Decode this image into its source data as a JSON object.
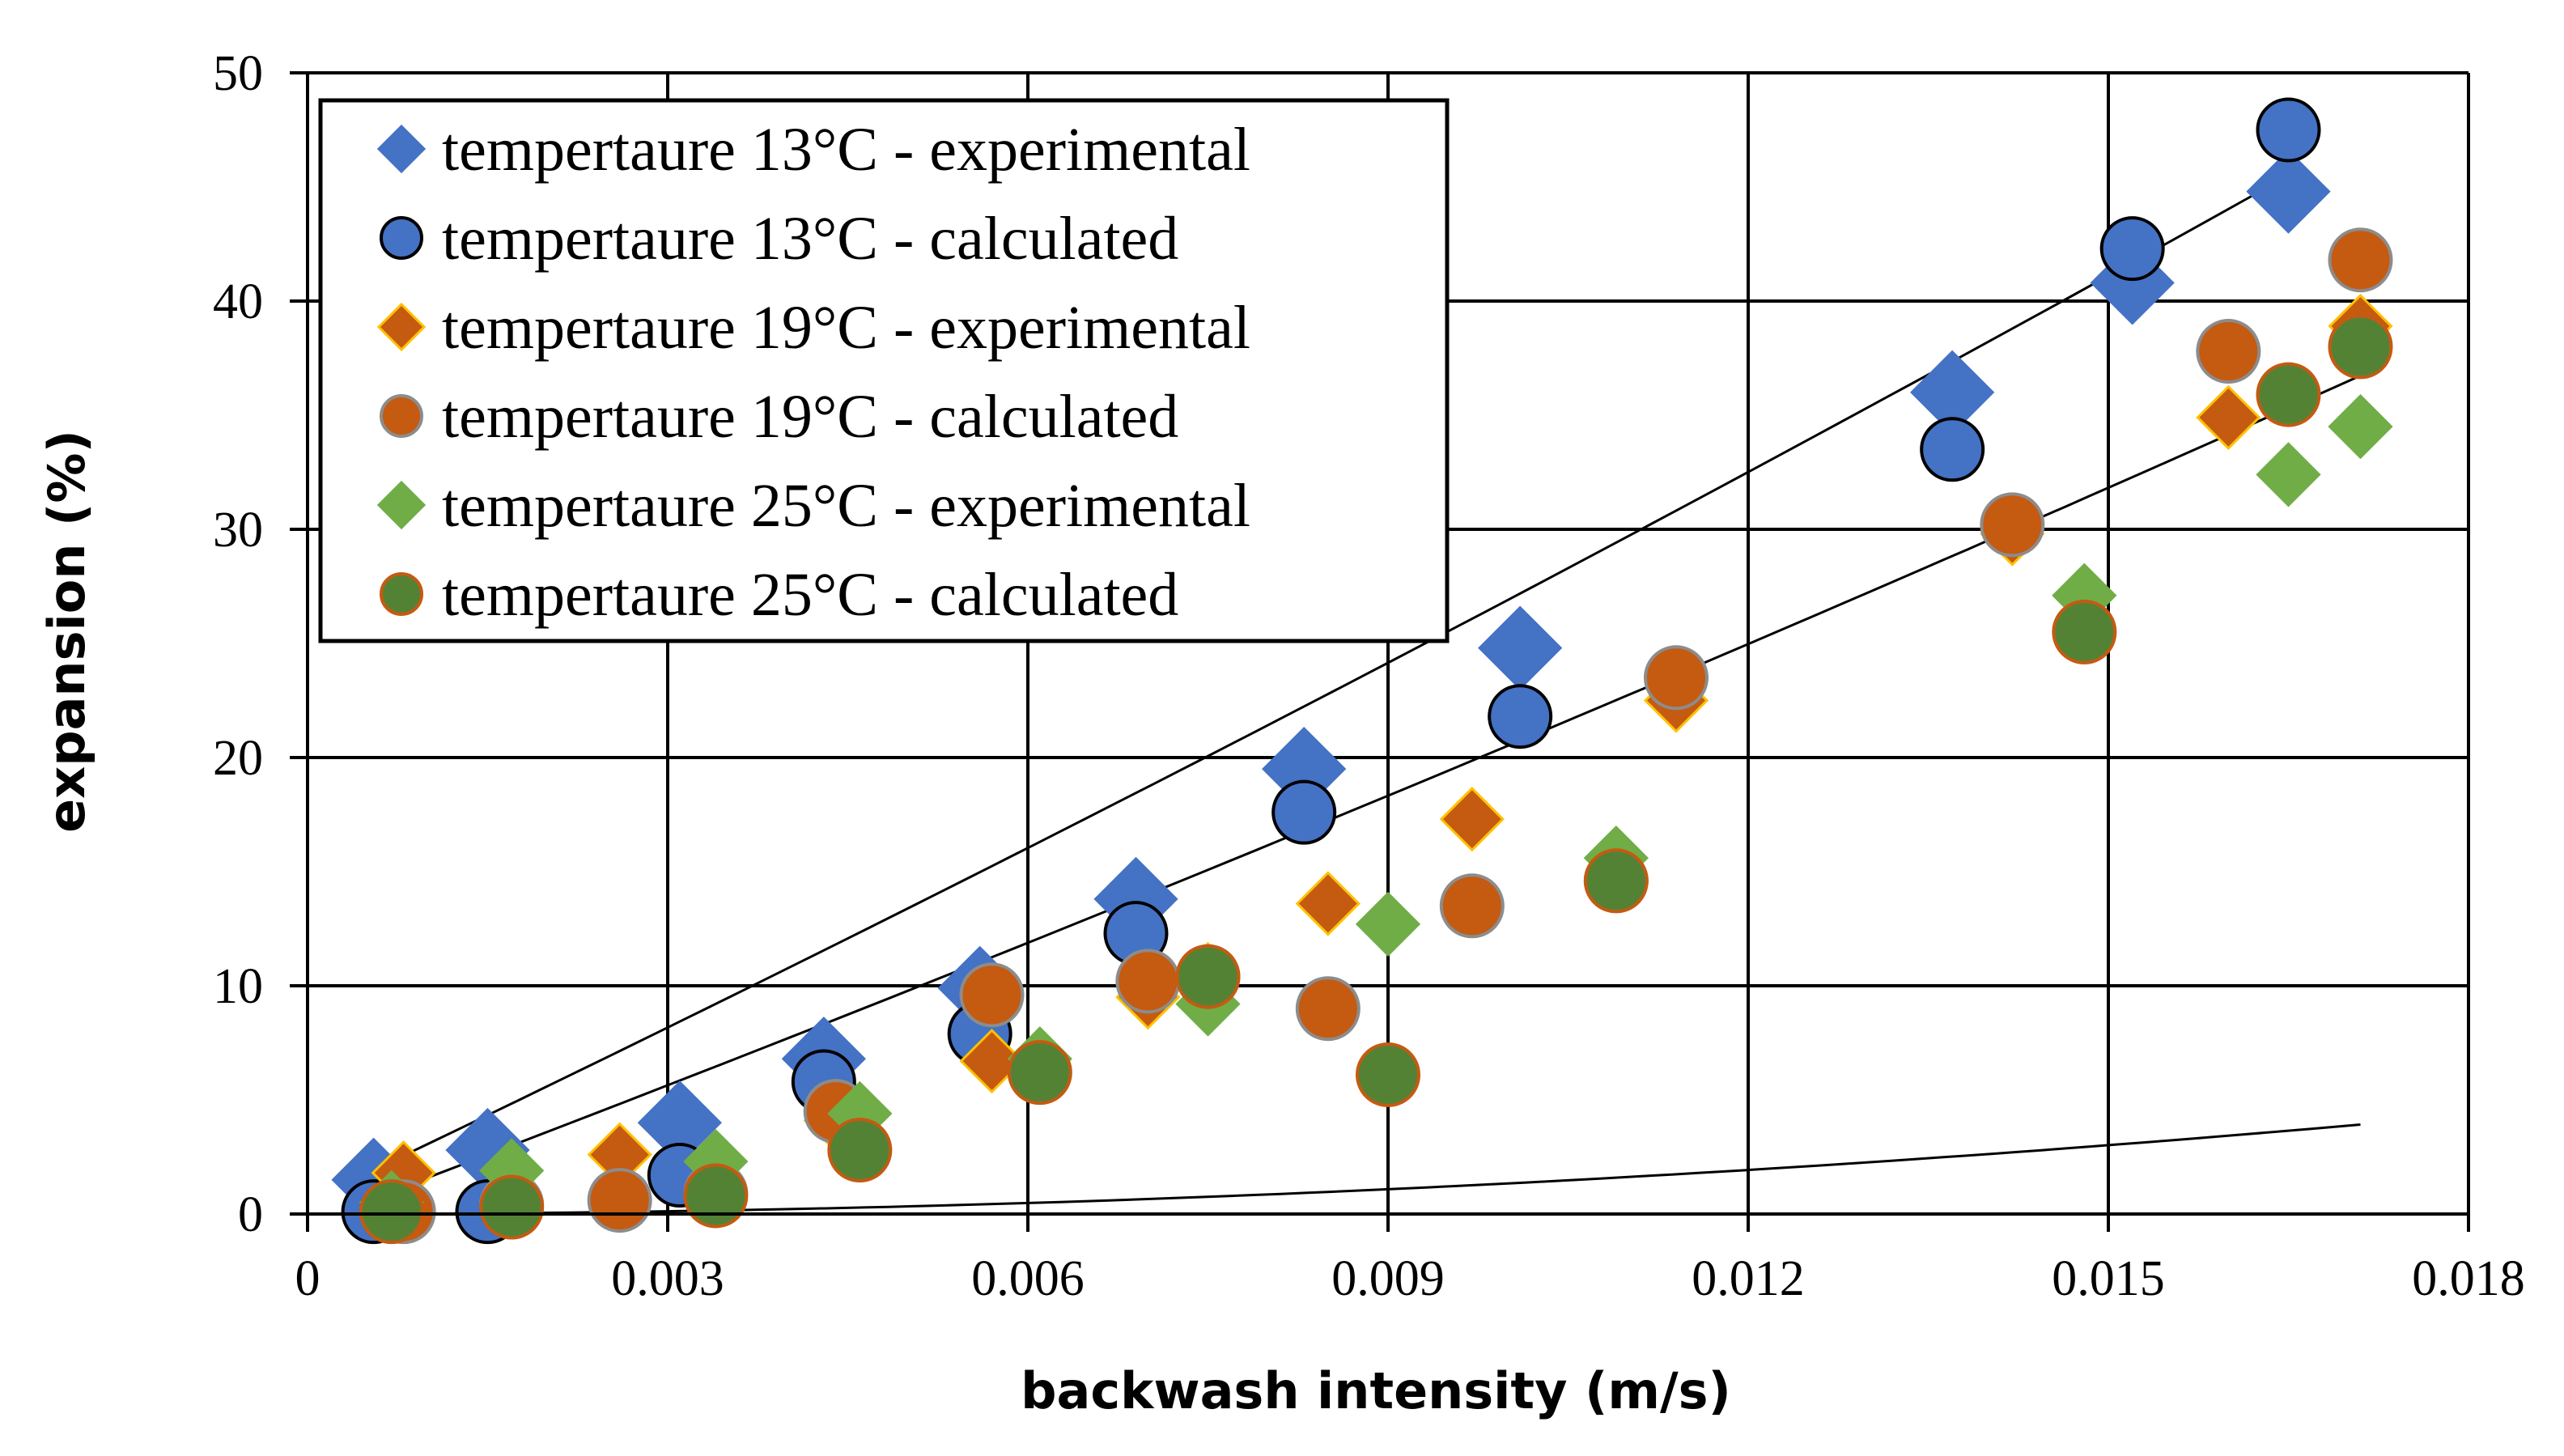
{
  "chart_data": {
    "type": "scatter",
    "title": "",
    "xlabel": "backwash intensity (m/s)",
    "ylabel": "expansion (%)",
    "xlim": [
      0,
      0.018
    ],
    "ylim": [
      0,
      50
    ],
    "x_ticks": [
      "0",
      "0.003",
      "0.006",
      "0.009",
      "0.012",
      "0.015",
      "0.018"
    ],
    "y_ticks": [
      "0",
      "10",
      "20",
      "30",
      "40",
      "50"
    ],
    "grid": true,
    "legend_placement": "top-left",
    "series": [
      {
        "name": "tempertaure 13°C - experimental",
        "marker": "diamond",
        "color": "#4472C4",
        "points": [
          [
            0.00055,
            1.5
          ],
          [
            0.0015,
            2.8
          ],
          [
            0.0031,
            4.0
          ],
          [
            0.0043,
            6.8
          ],
          [
            0.0056,
            9.9
          ],
          [
            0.0069,
            13.8
          ],
          [
            0.0083,
            19.5
          ],
          [
            0.0101,
            24.8
          ],
          [
            0.0137,
            36.0
          ],
          [
            0.0152,
            40.8
          ],
          [
            0.0165,
            44.8
          ]
        ]
      },
      {
        "name": "tempertaure 13°C - calculated",
        "marker": "circle",
        "color": "#4472C4",
        "points": [
          [
            0.00055,
            0.1
          ],
          [
            0.0015,
            0.1
          ],
          [
            0.0031,
            1.7
          ],
          [
            0.0043,
            5.8
          ],
          [
            0.0056,
            7.9
          ],
          [
            0.0069,
            12.3
          ],
          [
            0.0083,
            17.6
          ],
          [
            0.0101,
            21.8
          ],
          [
            0.0137,
            33.5
          ],
          [
            0.0152,
            42.3
          ],
          [
            0.0165,
            47.5
          ]
        ]
      },
      {
        "name": "tempertaure 19°C - experimental",
        "marker": "diamond",
        "color": "#C55A11",
        "points": [
          [
            0.0008,
            1.8
          ],
          [
            0.0017,
            0.6
          ],
          [
            0.0026,
            2.6
          ],
          [
            0.0034,
            1.0
          ],
          [
            0.0044,
            4.1
          ],
          [
            0.0057,
            6.7
          ],
          [
            0.007,
            9.5
          ],
          [
            0.0075,
            10.5
          ],
          [
            0.0085,
            13.6
          ],
          [
            0.0097,
            17.3
          ],
          [
            0.0109,
            14.8
          ],
          [
            0.0114,
            22.5
          ],
          [
            0.0142,
            29.8
          ],
          [
            0.016,
            34.9
          ],
          [
            0.0171,
            38.9
          ]
        ]
      },
      {
        "name": "tempertaure 19°C - calculated",
        "marker": "circle",
        "color": "#C55A11",
        "points": [
          [
            0.0008,
            0.1
          ],
          [
            0.0017,
            0.4
          ],
          [
            0.0026,
            0.6
          ],
          [
            0.0034,
            0.9
          ],
          [
            0.0044,
            4.5
          ],
          [
            0.0057,
            9.6
          ],
          [
            0.007,
            10.2
          ],
          [
            0.0075,
            10.4
          ],
          [
            0.0085,
            9.0
          ],
          [
            0.0097,
            13.5
          ],
          [
            0.0109,
            14.6
          ],
          [
            0.0114,
            23.5
          ],
          [
            0.0142,
            30.2
          ],
          [
            0.016,
            37.8
          ],
          [
            0.0171,
            41.8
          ]
        ]
      },
      {
        "name": "tempertaure 25°C - experimental",
        "marker": "diamond",
        "color": "#70AD47",
        "points": [
          [
            0.0007,
            0.5
          ],
          [
            0.0017,
            1.9
          ],
          [
            0.0034,
            2.3
          ],
          [
            0.0046,
            4.4
          ],
          [
            0.0061,
            6.8
          ],
          [
            0.0075,
            9.2
          ],
          [
            0.009,
            12.7
          ],
          [
            0.0109,
            15.6
          ],
          [
            0.0148,
            27.1
          ],
          [
            0.0165,
            32.4
          ],
          [
            0.0171,
            34.5
          ]
        ]
      },
      {
        "name": "tempertaure 25°C - calculated",
        "marker": "circle",
        "color": "#548235",
        "points": [
          [
            0.0007,
            0.1
          ],
          [
            0.0017,
            0.3
          ],
          [
            0.0034,
            0.8
          ],
          [
            0.0046,
            2.8
          ],
          [
            0.0061,
            6.2
          ],
          [
            0.0075,
            10.4
          ],
          [
            0.009,
            6.1
          ],
          [
            0.0109,
            14.6
          ],
          [
            0.0148,
            25.5
          ],
          [
            0.0165,
            35.9
          ],
          [
            0.0171,
            38.0
          ]
        ]
      }
    ],
    "trendlines": [
      {
        "x": [
          0.00075,
          0.0165
        ],
        "coef": [
          13600,
          2500,
          0.55
        ]
      },
      {
        "x": [
          0.00075,
          0.0171
        ],
        "coef": [
          11200,
          1980,
          -0.4
        ]
      },
      {
        "x": [
          0.00075,
          0.0171
        ],
        "coef": [
          13400,
          0,
          0
        ]
      }
    ]
  }
}
